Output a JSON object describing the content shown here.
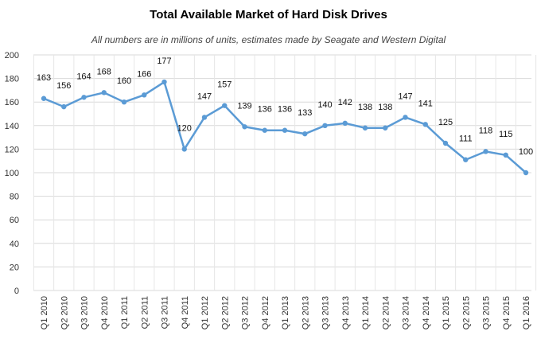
{
  "chart_data": {
    "type": "line",
    "title": "Total Available Market of Hard Disk Drives",
    "subtitle": "All numbers are in millions of units, estimates made by Seagate and Western Digital",
    "xlabel": "",
    "ylabel": "",
    "ylim": [
      0,
      200
    ],
    "yticks": [
      0,
      20,
      40,
      60,
      80,
      100,
      120,
      140,
      160,
      180,
      200
    ],
    "grid": true,
    "legend": "none",
    "series_color": "#5b9bd5",
    "categories": [
      "Q1 2010",
      "Q2 2010",
      "Q3 2010",
      "Q4 2010",
      "Q1 2011",
      "Q2 2011",
      "Q3 2011",
      "Q4 2011",
      "Q1 2012",
      "Q2 2012",
      "Q3 2012",
      "Q4 2012",
      "Q1 2013",
      "Q2 2013",
      "Q3 2013",
      "Q4 2013",
      "Q1 2014",
      "Q2 2014",
      "Q3 2014",
      "Q4 2014",
      "Q1 2015",
      "Q2 2015",
      "Q3 2015",
      "Q4 2015",
      "Q1 2016"
    ],
    "values": [
      163,
      156,
      164,
      168,
      160,
      166,
      177,
      120,
      147,
      157,
      139,
      136,
      136,
      133,
      140,
      142,
      138,
      138,
      147,
      141,
      125,
      111,
      118,
      115,
      100
    ]
  }
}
